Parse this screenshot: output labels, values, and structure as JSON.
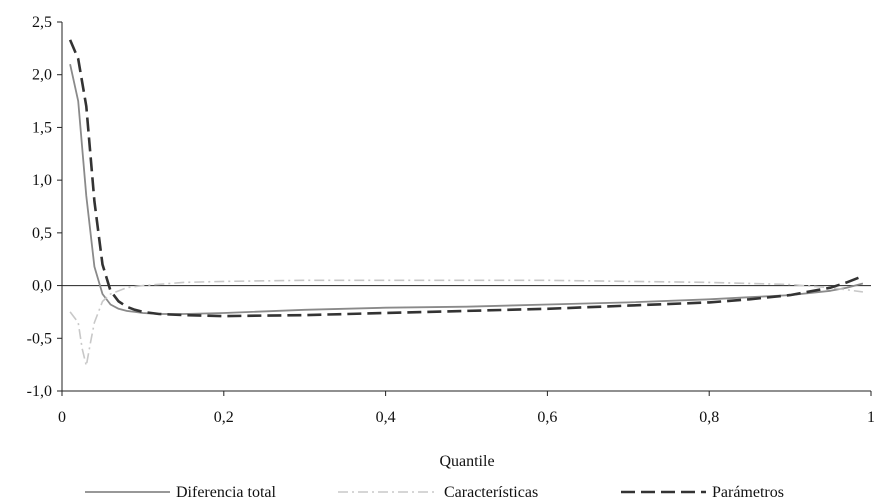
{
  "chart_data": {
    "type": "line",
    "title": "",
    "xlabel": "Quantile",
    "ylabel": "",
    "xlim": [
      0,
      1
    ],
    "ylim": [
      -1.0,
      2.5
    ],
    "x_ticks": [
      0,
      0.2,
      0.4,
      0.6,
      0.8,
      1
    ],
    "x_tick_labels": [
      "0",
      "0,2",
      "0,4",
      "0,6",
      "0,8",
      "1"
    ],
    "y_ticks": [
      -1.0,
      -0.5,
      0.0,
      0.5,
      1.0,
      1.5,
      2.0,
      2.5
    ],
    "y_tick_labels": [
      "-1,0",
      "-0,5",
      "0,0",
      "0,5",
      "1,0",
      "1,5",
      "2,0",
      "2,5"
    ],
    "grid": false,
    "legend_position": "bottom",
    "series": [
      {
        "name": "Diferencia total",
        "color": "#8a8a8a",
        "dash": "solid",
        "x": [
          0.01,
          0.02,
          0.03,
          0.04,
          0.05,
          0.06,
          0.07,
          0.08,
          0.09,
          0.1,
          0.12,
          0.15,
          0.2,
          0.3,
          0.4,
          0.5,
          0.6,
          0.7,
          0.8,
          0.85,
          0.9,
          0.95,
          0.97,
          0.99
        ],
        "y": [
          2.1,
          1.75,
          0.85,
          0.18,
          -0.08,
          -0.18,
          -0.22,
          -0.24,
          -0.25,
          -0.26,
          -0.27,
          -0.27,
          -0.26,
          -0.23,
          -0.21,
          -0.2,
          -0.18,
          -0.16,
          -0.13,
          -0.11,
          -0.09,
          -0.05,
          -0.02,
          0.02
        ]
      },
      {
        "name": "Características",
        "color": "#c8c8c8",
        "dash": "dashdot",
        "x": [
          0.01,
          0.02,
          0.025,
          0.03,
          0.035,
          0.04,
          0.05,
          0.06,
          0.08,
          0.1,
          0.15,
          0.2,
          0.3,
          0.4,
          0.5,
          0.6,
          0.7,
          0.8,
          0.9,
          0.95,
          0.99
        ],
        "y": [
          -0.25,
          -0.35,
          -0.6,
          -0.76,
          -0.55,
          -0.35,
          -0.15,
          -0.08,
          -0.02,
          0.0,
          0.03,
          0.04,
          0.05,
          0.05,
          0.05,
          0.05,
          0.04,
          0.03,
          0.01,
          -0.02,
          -0.06
        ]
      },
      {
        "name": "Parámetros",
        "color": "#333333",
        "dash": "longdash",
        "x": [
          0.01,
          0.02,
          0.03,
          0.04,
          0.05,
          0.06,
          0.07,
          0.08,
          0.09,
          0.1,
          0.12,
          0.15,
          0.2,
          0.3,
          0.4,
          0.5,
          0.6,
          0.7,
          0.8,
          0.85,
          0.9,
          0.95,
          0.97,
          0.99
        ],
        "y": [
          2.33,
          2.15,
          1.7,
          0.8,
          0.2,
          -0.05,
          -0.15,
          -0.2,
          -0.23,
          -0.25,
          -0.27,
          -0.28,
          -0.29,
          -0.28,
          -0.26,
          -0.24,
          -0.22,
          -0.19,
          -0.16,
          -0.13,
          -0.09,
          -0.02,
          0.03,
          0.09
        ]
      }
    ]
  }
}
